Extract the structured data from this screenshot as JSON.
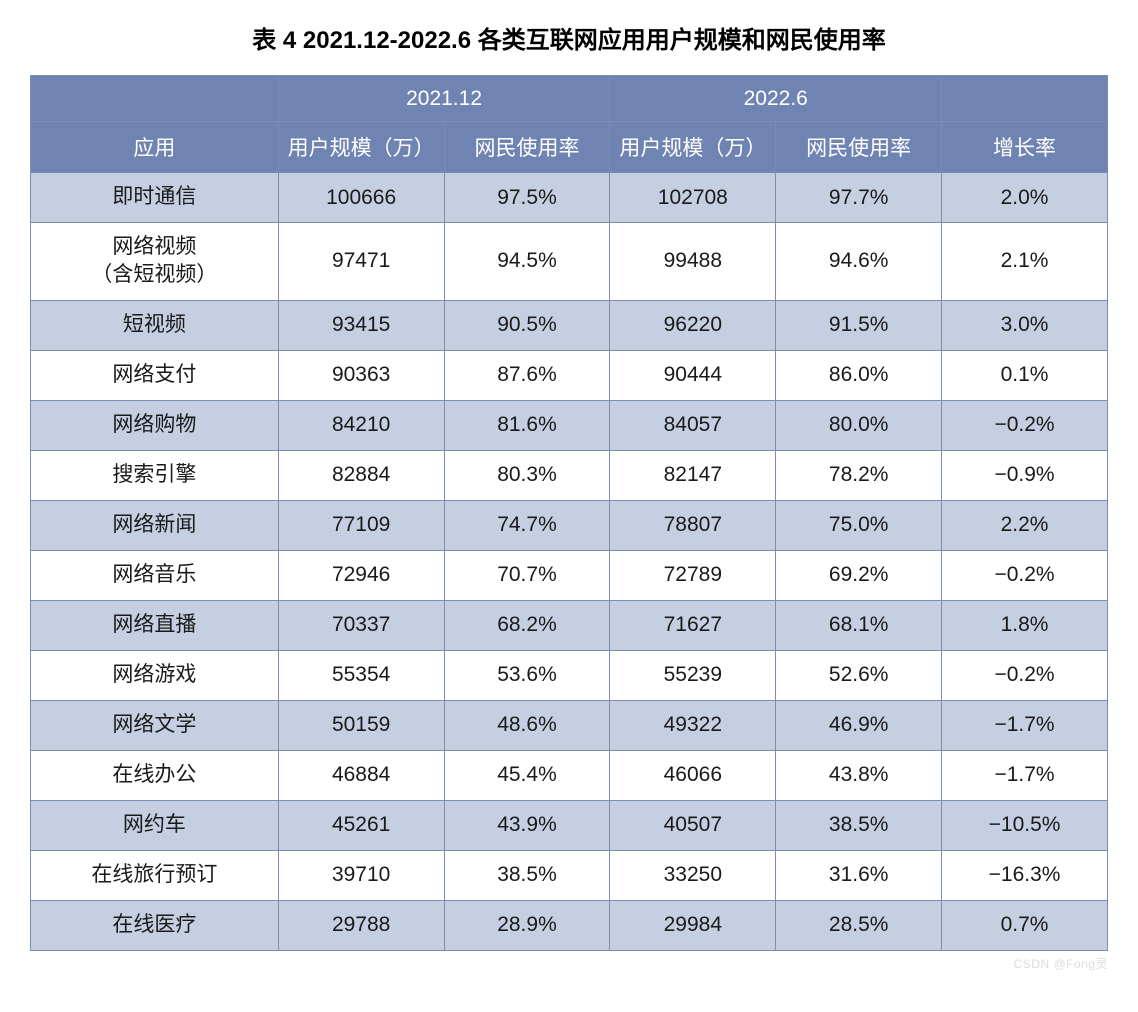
{
  "title": "表 4  2021.12-2022.6 各类互联网应用用户规模和网民使用率",
  "table": {
    "colors": {
      "header_bg": "#6f84b2",
      "header_text": "#ffffff",
      "shaded_row_bg": "#c6cee2",
      "white_row_bg": "#ffffff",
      "border": "#7a8db3",
      "body_text": "#1a1a1a"
    },
    "fontsize": {
      "title": 24,
      "cell": 21
    },
    "periods": [
      "2021.12",
      "2022.6"
    ],
    "columns": {
      "app": "应用",
      "users": "用户规模（万）",
      "rate": "网民使用率",
      "growth": "增长率"
    },
    "col_widths_pct": [
      23,
      15.4,
      15.4,
      15.4,
      15.4,
      15.4
    ],
    "rows": [
      {
        "app": "即时通信",
        "p1_users": "100666",
        "p1_rate": "97.5%",
        "p2_users": "102708",
        "p2_rate": "97.7%",
        "growth": "2.0%",
        "shaded": true
      },
      {
        "app": "网络视频\n（含短视频）",
        "p1_users": "97471",
        "p1_rate": "94.5%",
        "p2_users": "99488",
        "p2_rate": "94.6%",
        "growth": "2.1%",
        "shaded": false
      },
      {
        "app": "短视频",
        "p1_users": "93415",
        "p1_rate": "90.5%",
        "p2_users": "96220",
        "p2_rate": "91.5%",
        "growth": "3.0%",
        "shaded": true
      },
      {
        "app": "网络支付",
        "p1_users": "90363",
        "p1_rate": "87.6%",
        "p2_users": "90444",
        "p2_rate": "86.0%",
        "growth": "0.1%",
        "shaded": false
      },
      {
        "app": "网络购物",
        "p1_users": "84210",
        "p1_rate": "81.6%",
        "p2_users": "84057",
        "p2_rate": "80.0%",
        "growth": "−0.2%",
        "shaded": true
      },
      {
        "app": "搜索引擎",
        "p1_users": "82884",
        "p1_rate": "80.3%",
        "p2_users": "82147",
        "p2_rate": "78.2%",
        "growth": "−0.9%",
        "shaded": false
      },
      {
        "app": "网络新闻",
        "p1_users": "77109",
        "p1_rate": "74.7%",
        "p2_users": "78807",
        "p2_rate": "75.0%",
        "growth": "2.2%",
        "shaded": true
      },
      {
        "app": "网络音乐",
        "p1_users": "72946",
        "p1_rate": "70.7%",
        "p2_users": "72789",
        "p2_rate": "69.2%",
        "growth": "−0.2%",
        "shaded": false
      },
      {
        "app": "网络直播",
        "p1_users": "70337",
        "p1_rate": "68.2%",
        "p2_users": "71627",
        "p2_rate": "68.1%",
        "growth": "1.8%",
        "shaded": true
      },
      {
        "app": "网络游戏",
        "p1_users": "55354",
        "p1_rate": "53.6%",
        "p2_users": "55239",
        "p2_rate": "52.6%",
        "growth": "−0.2%",
        "shaded": false
      },
      {
        "app": "网络文学",
        "p1_users": "50159",
        "p1_rate": "48.6%",
        "p2_users": "49322",
        "p2_rate": "46.9%",
        "growth": "−1.7%",
        "shaded": true
      },
      {
        "app": "在线办公",
        "p1_users": "46884",
        "p1_rate": "45.4%",
        "p2_users": "46066",
        "p2_rate": "43.8%",
        "growth": "−1.7%",
        "shaded": false
      },
      {
        "app": "网约车",
        "p1_users": "45261",
        "p1_rate": "43.9%",
        "p2_users": "40507",
        "p2_rate": "38.5%",
        "growth": "−10.5%",
        "shaded": true
      },
      {
        "app": "在线旅行预订",
        "p1_users": "39710",
        "p1_rate": "38.5%",
        "p2_users": "33250",
        "p2_rate": "31.6%",
        "growth": "−16.3%",
        "shaded": false
      },
      {
        "app": "在线医疗",
        "p1_users": "29788",
        "p1_rate": "28.9%",
        "p2_users": "29984",
        "p2_rate": "28.5%",
        "growth": "0.7%",
        "shaded": true
      }
    ]
  },
  "watermark": "CSDN @Fong灵"
}
